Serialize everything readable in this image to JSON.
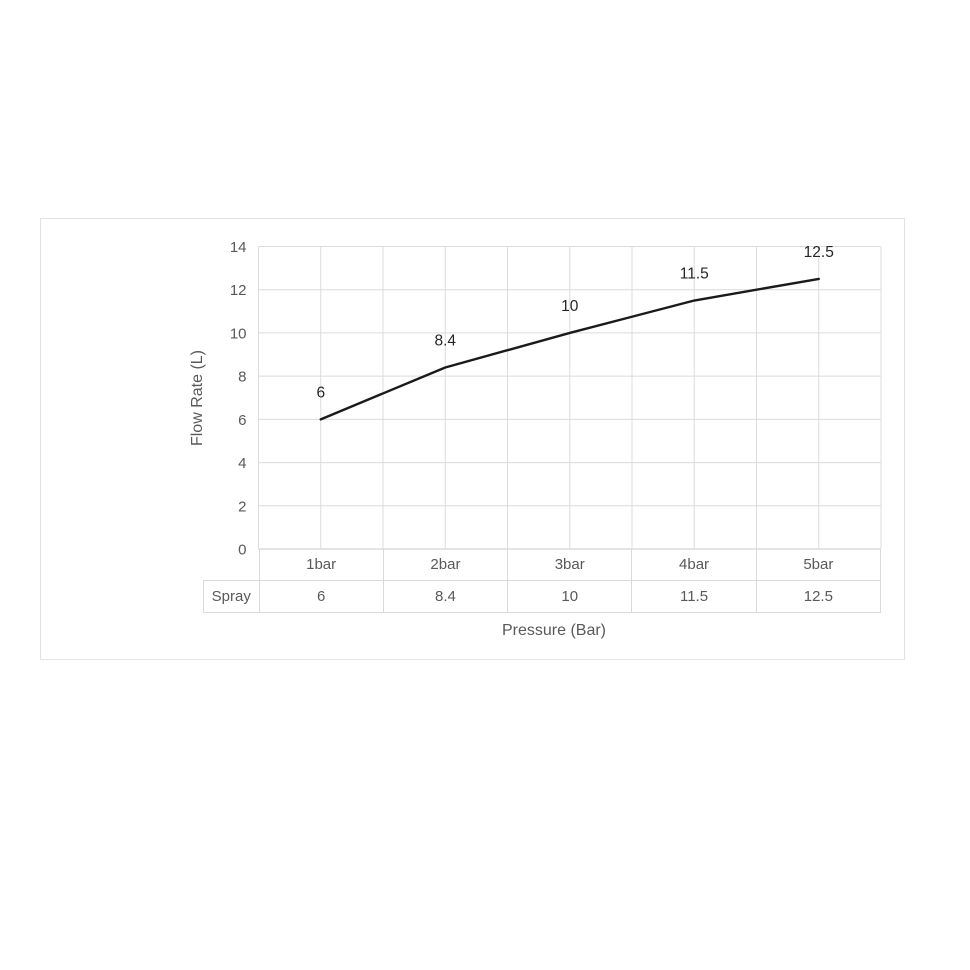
{
  "chart_data": {
    "type": "line",
    "title": "",
    "categories": [
      "1bar",
      "2bar",
      "3bar",
      "4bar",
      "5bar"
    ],
    "series": [
      {
        "name": "Spray",
        "values": [
          6,
          8.4,
          10,
          11.5,
          12.5
        ]
      }
    ],
    "data_labels": [
      "6",
      "8.4",
      "10",
      "11.5",
      "12.5"
    ],
    "xlabel": "Pressure (Bar)",
    "ylabel": "Flow Rate (L)",
    "ylim": [
      0,
      14
    ],
    "y_ticks": [
      0,
      2,
      4,
      6,
      8,
      10,
      12,
      14
    ],
    "grid": "horizontal-major-and-vertical-half-category",
    "legend_position": "none",
    "data_table_shown": true,
    "colors": {
      "line": "#1a1a1a",
      "gridline": "#dcdcdc",
      "axis_line": "#c8c8c8",
      "tick_text": "#595959",
      "data_label_text": "#262626",
      "table_border": "#d9d9d9",
      "chart_border": "#e2e2e2"
    }
  }
}
